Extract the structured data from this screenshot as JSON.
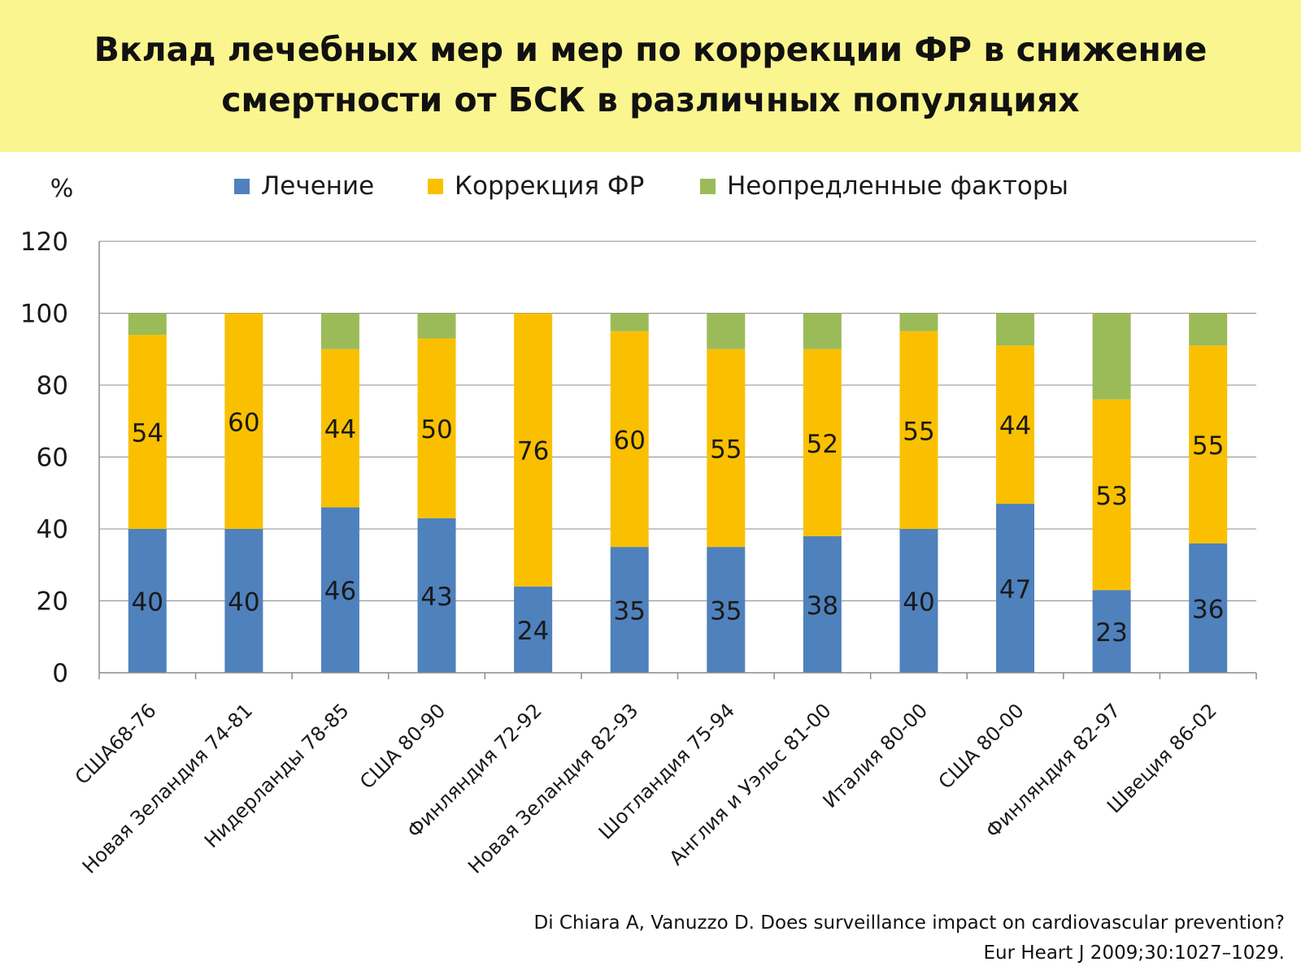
{
  "slide": {
    "title_line1": "Вклад лечебных мер и мер по коррекции ФР в снижение",
    "title_line2": "смертности от БСК в различных популяциях",
    "background_color": "#fbf58f",
    "citation_line1": "Di Chiara A, Vanuzzo D. Does surveillance impact on cardiovascular prevention?",
    "citation_line2": "Eur Heart J 2009;30:1027–1029."
  },
  "chart_data": {
    "type": "bar",
    "stacked": true,
    "ylabel": "%",
    "ylim": [
      0,
      120
    ],
    "yticks": [
      0,
      20,
      40,
      60,
      80,
      100,
      120
    ],
    "grid": true,
    "legend_position": "top",
    "categories": [
      "США68-76",
      "Новая Зеландия 74-81",
      "Нидерланды 78-85",
      "США 80-90",
      "Финляндия 72-92",
      "Новая Зеландия 82-93",
      "Шотландия 75-94",
      "Англия и Уэльс 81-00",
      "Италия 80-00",
      "США 80-00",
      "Финляндия 82-97",
      "Швеция 86-02"
    ],
    "series": [
      {
        "name": "Лечение",
        "color": "#4f81bd",
        "values": [
          40,
          40,
          46,
          43,
          24,
          35,
          35,
          38,
          40,
          47,
          23,
          36
        ],
        "show_labels": true
      },
      {
        "name": "Коррекция ФР",
        "color": "#fac000",
        "values": [
          54,
          60,
          44,
          50,
          76,
          60,
          55,
          52,
          55,
          44,
          53,
          55
        ],
        "show_labels": true
      },
      {
        "name": "Неопредленные факторы",
        "color": "#9bbb59",
        "values": [
          6,
          0,
          10,
          7,
          0,
          5,
          10,
          10,
          5,
          9,
          24,
          9
        ],
        "show_labels": false
      }
    ]
  }
}
